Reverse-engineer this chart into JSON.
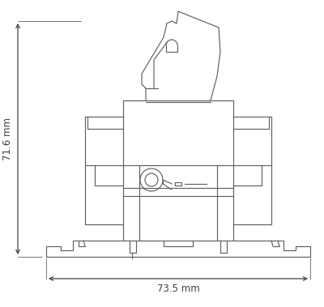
{
  "bg_color": "#ffffff",
  "line_color": "#606060",
  "dim_color": "#404040",
  "width_label": "73.5 mm",
  "height_label": "71.6 mm"
}
